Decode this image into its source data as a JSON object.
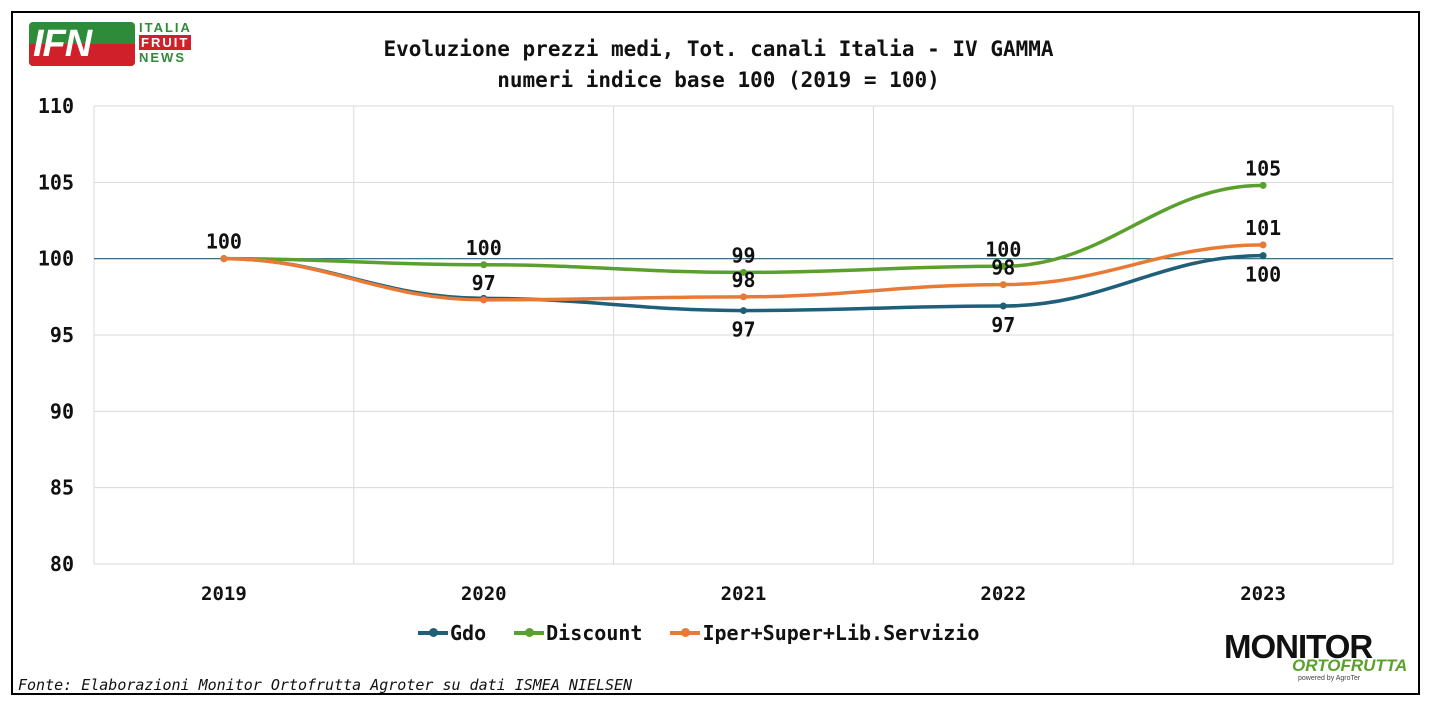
{
  "logos": {
    "ifn": {
      "main": "IFN",
      "line1": "ITALIA",
      "line2": "FRUIT",
      "line3": "NEWS"
    },
    "monitor": {
      "main": "MONITOR",
      "sub": "ORTOFRUTTA",
      "powered": "powered by AgroTer"
    }
  },
  "colors": {
    "Gdo": "#1f5f7a",
    "Discount": "#5aa02c",
    "Iper": "#e87a37",
    "grid": "#d9d9d9",
    "baseline": "#1f5f7a"
  },
  "source": "Fonte: Elaborazioni Monitor Ortofrutta Agroter su dati ISMEA NIELSEN",
  "chart_data": {
    "type": "line",
    "title": "Evoluzione prezzi medi, Tot. canali Italia - IV GAMMA",
    "subtitle": "numeri indice base 100 (2019 = 100)",
    "categories": [
      "2019",
      "2020",
      "2021",
      "2022",
      "2023"
    ],
    "ylim": [
      80,
      110
    ],
    "yticks": [
      80,
      85,
      90,
      95,
      100,
      105,
      110
    ],
    "grid": true,
    "legend_position": "bottom",
    "series": [
      {
        "name": "Gdo",
        "values": [
          100,
          97.4,
          96.6,
          96.9,
          100.2
        ],
        "labels": [
          "",
          "",
          "97",
          "97",
          "100"
        ],
        "label_pos": [
          "",
          "",
          "below",
          "below",
          "below"
        ]
      },
      {
        "name": "Discount",
        "values": [
          100,
          99.6,
          99.1,
          99.5,
          104.8
        ],
        "labels": [
          "",
          "100",
          "99",
          "100",
          "105"
        ],
        "label_pos": [
          "",
          "above",
          "above",
          "above",
          "above"
        ]
      },
      {
        "name": "Iper+Super+Lib.Servizio",
        "values": [
          100,
          97.3,
          97.5,
          98.3,
          100.9
        ],
        "labels": [
          "100",
          "97",
          "98",
          "98",
          "101"
        ],
        "label_pos": [
          "above",
          "above",
          "above",
          "above",
          "above"
        ]
      }
    ]
  }
}
